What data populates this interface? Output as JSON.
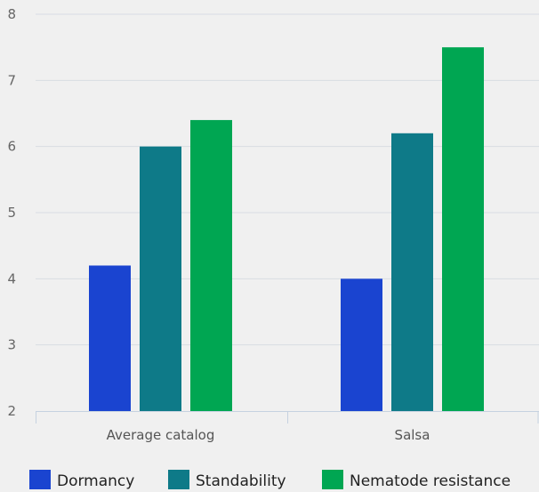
{
  "chart_data": {
    "type": "bar",
    "categories": [
      "Average catalog",
      "Salsa"
    ],
    "series": [
      {
        "name": "Dormancy",
        "values": [
          4.2,
          4.0
        ],
        "color": "#1a44d0"
      },
      {
        "name": "Standability",
        "values": [
          6.0,
          6.2
        ],
        "color": "#0e7a88"
      },
      {
        "name": "Nematode resistance",
        "values": [
          6.4,
          7.5
        ],
        "color": "#00a652"
      }
    ],
    "ylim": [
      2,
      8
    ],
    "yticks": [
      2,
      3,
      4,
      5,
      6,
      7,
      8
    ],
    "grid": true,
    "legend": "bottom"
  }
}
